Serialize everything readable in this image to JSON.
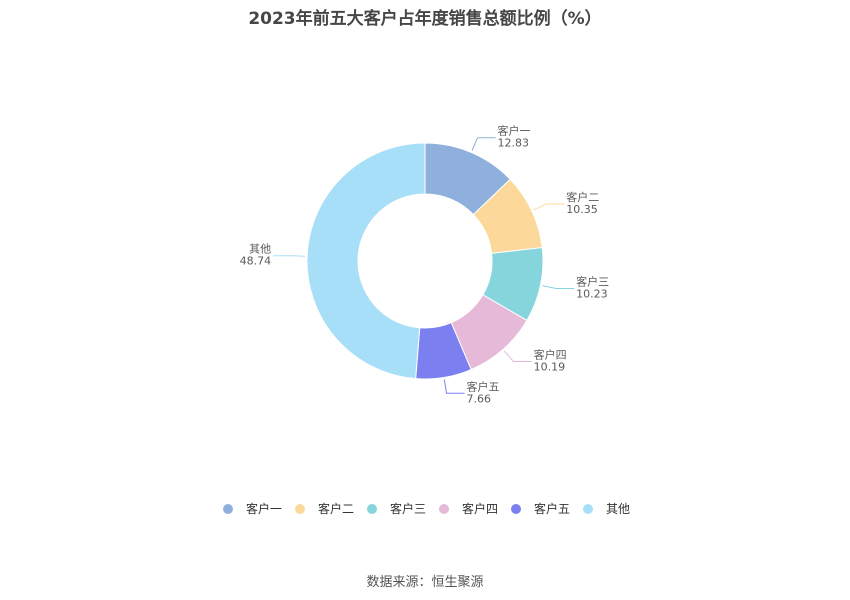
{
  "title": "2023年前五大客户占年度销售总额比例（%）",
  "source": "数据来源：恒生聚源",
  "chart_data": {
    "type": "pie",
    "variant": "donut",
    "title": "2023年前五大客户占年度销售总额比例（%）",
    "categories": [
      "客户一",
      "客户二",
      "客户三",
      "客户四",
      "客户五",
      "其他"
    ],
    "values": [
      12.83,
      10.35,
      10.23,
      10.19,
      7.66,
      48.74
    ],
    "value_labels": [
      "12.83",
      "10.35",
      "10.23",
      "10.19",
      "7.66",
      "48.74"
    ],
    "colors": [
      "#8fb0dc",
      "#fcd89a",
      "#86d5dc",
      "#e6b9d8",
      "#7b7ff0",
      "#a8dff8"
    ],
    "legend_position": "bottom"
  }
}
